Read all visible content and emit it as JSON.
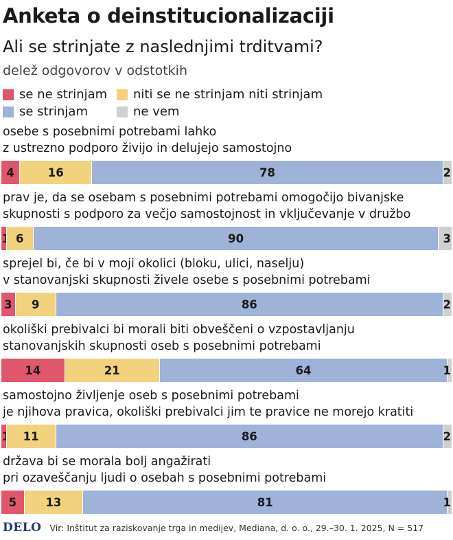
{
  "chart_data": {
    "type": "bar",
    "orientation": "horizontal",
    "stacked": true,
    "title": "Anketa o deinstitucionalizaciji",
    "subtitle": "Ali se strinjate z naslednjimi trditvami?",
    "unit_label": "delež odgovorov v odstotkih",
    "legend": [
      {
        "name": "se ne strinjam",
        "color": "#e0566a"
      },
      {
        "name": "niti se ne strinjam niti strinjam",
        "color": "#f2d27c"
      },
      {
        "name": "se strinjam",
        "color": "#9fb3d8"
      },
      {
        "name": "ne vem",
        "color": "#d0d0d0"
      }
    ],
    "categories": [
      [
        "osebe s posebnimi potrebami lahko",
        "z ustrezno podporo živijo in delujejo samostojno"
      ],
      [
        "prav je, da se osebam s posebnimi potrebami omogočijo bivanjske",
        "skupnosti s podporo za večjo samostojnost in vključevanje v družbo"
      ],
      [
        "sprejel bi, če bi v moji okolici (bloku, ulici, naselju)",
        "v stanovanjski skupnosti živele osebe s posebnimi potrebami"
      ],
      [
        "okoliški prebivalci bi morali biti obveščeni o vzpostavljanju",
        "stanovanjskih skupnosti oseb s posebnimi potrebami"
      ],
      [
        "samostojno življenje oseb s posebnimi potrebami",
        "je njihova pravica, okoliški prebivalci jim te pravice ne morejo kratiti"
      ],
      [
        "država bi se morala bolj angažirati",
        "pri ozaveščanju ljudi o osebah s posebnimi potrebami"
      ]
    ],
    "series": [
      {
        "name": "se ne strinjam",
        "values": [
          4,
          1,
          3,
          14,
          1,
          5
        ]
      },
      {
        "name": "niti se ne strinjam niti strinjam",
        "values": [
          16,
          6,
          9,
          21,
          11,
          13
        ]
      },
      {
        "name": "se strinjam",
        "values": [
          78,
          90,
          86,
          64,
          86,
          81
        ]
      },
      {
        "name": "ne vem",
        "values": [
          2,
          3,
          2,
          1,
          2,
          1
        ]
      }
    ]
  },
  "footer": {
    "logo": "DELO",
    "source": "Vir: Inštitut za raziskovanje trga in medijev, Mediana, d. o. o., 29.–30. 1. 2025, N = 517"
  }
}
